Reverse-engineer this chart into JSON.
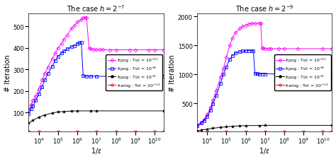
{
  "title_left": "The case $h = 2^{-7}$",
  "title_right": "The case $h = 2^{-9}$",
  "xlabel": "$1/\\epsilon$",
  "ylabel": "# Iteration",
  "xlim": [
    3000.0,
    30000000000.0
  ],
  "ylim_left": [
    10,
    560
  ],
  "ylim_right": [
    10,
    2050
  ],
  "yticks_left": [
    100,
    200,
    300,
    400,
    500
  ],
  "yticks_right": [
    500,
    1000,
    1500,
    2000
  ],
  "legend_labels": [
    "itpcg : Tol = $10^{-11}$",
    "itpcg : Tol = $10^{-8}$",
    "itpcg : Tol = $10^{-5}$",
    "itamg : Tol = $10^{-11}$"
  ],
  "line_colors": [
    "magenta",
    "blue",
    "black",
    "red"
  ],
  "markers": [
    "D",
    "s",
    "*",
    "o"
  ],
  "left_curves": {
    "magenta": {
      "x": [
        3000,
        4000,
        5000,
        7000,
        10000,
        15000,
        20000,
        30000,
        50000,
        70000,
        100000,
        150000,
        200000,
        300000,
        500000,
        700000,
        1000000,
        1500000,
        2000000,
        2500000,
        3000000,
        4000000,
        5000000,
        7000000,
        10000000,
        15000000,
        20000000,
        50000000,
        100000000,
        500000000,
        1000000000,
        5000000000,
        10000000000,
        30000000000
      ],
      "y": [
        110,
        135,
        155,
        175,
        210,
        250,
        280,
        310,
        350,
        375,
        400,
        420,
        440,
        460,
        490,
        505,
        520,
        530,
        540,
        542,
        540,
        400,
        395,
        393,
        392,
        392,
        392,
        391,
        391,
        391,
        391,
        391,
        391,
        391
      ]
    },
    "blue": {
      "x": [
        3000,
        4000,
        5000,
        7000,
        10000,
        15000,
        20000,
        30000,
        50000,
        70000,
        100000,
        150000,
        200000,
        300000,
        500000,
        700000,
        1000000,
        1300000,
        1600000,
        2000000,
        3000000,
        5000000,
        10000000,
        50000000,
        100000000,
        1000000000,
        10000000000,
        30000000000
      ],
      "y": [
        95,
        115,
        130,
        155,
        185,
        220,
        250,
        280,
        315,
        340,
        360,
        375,
        385,
        395,
        405,
        410,
        420,
        425,
        425,
        270,
        268,
        268,
        268,
        268,
        268,
        268,
        268,
        268
      ]
    },
    "black": {
      "x": [
        3000,
        5000,
        10000,
        20000,
        50000,
        100000,
        200000,
        500000,
        1000000,
        5000000,
        10000000,
        30000000000
      ],
      "y": [
        50,
        63,
        78,
        88,
        97,
        102,
        104,
        106,
        107,
        107,
        107,
        107
      ]
    },
    "red": {
      "x": [
        3000,
        10000,
        100000,
        1000000,
        10000000,
        100000000,
        1000000000,
        10000000000,
        30000000000
      ],
      "y": [
        10,
        10,
        10,
        10,
        10,
        10,
        10,
        10,
        10
      ]
    }
  },
  "right_curves": {
    "magenta": {
      "x": [
        3000,
        5000,
        7000,
        10000,
        15000,
        20000,
        30000,
        50000,
        70000,
        100000,
        150000,
        200000,
        300000,
        500000,
        700000,
        1000000,
        1500000,
        2000000,
        3000000,
        5000000,
        6000000,
        7000000,
        8000000,
        10000000,
        15000000,
        20000000,
        50000000,
        100000000,
        500000000,
        10000000000,
        30000000000
      ],
      "y": [
        120,
        175,
        220,
        310,
        430,
        550,
        720,
        950,
        1100,
        1300,
        1500,
        1620,
        1720,
        1790,
        1830,
        1850,
        1870,
        1875,
        1880,
        1882,
        1881,
        1460,
        1450,
        1445,
        1443,
        1443,
        1443,
        1443,
        1443,
        1443,
        1443
      ]
    },
    "blue": {
      "x": [
        3000,
        5000,
        7000,
        10000,
        15000,
        20000,
        30000,
        50000,
        70000,
        100000,
        150000,
        200000,
        300000,
        500000,
        700000,
        1000000,
        1500000,
        2000000,
        2500000,
        3000000,
        4000000,
        5000000,
        7000000,
        10000000,
        50000000,
        10000000000,
        30000000000
      ],
      "y": [
        110,
        160,
        200,
        270,
        380,
        490,
        640,
        850,
        1000,
        1130,
        1260,
        1320,
        1370,
        1390,
        1400,
        1405,
        1408,
        1410,
        1410,
        1012,
        1010,
        1008,
        1008,
        1008,
        1008,
        1008,
        1008
      ]
    },
    "black": {
      "x": [
        3000,
        5000,
        10000,
        20000,
        50000,
        100000,
        200000,
        500000,
        1000000,
        5000000,
        10000000,
        30000000000
      ],
      "y": [
        28,
        38,
        55,
        70,
        85,
        95,
        105,
        112,
        115,
        118,
        120,
        120
      ]
    },
    "red": {
      "x": [
        3000,
        10000,
        100000,
        1000000,
        10000000,
        100000000,
        1000000000,
        10000000000,
        30000000000
      ],
      "y": [
        10,
        10,
        10,
        10,
        10,
        10,
        10,
        10,
        10
      ]
    }
  }
}
